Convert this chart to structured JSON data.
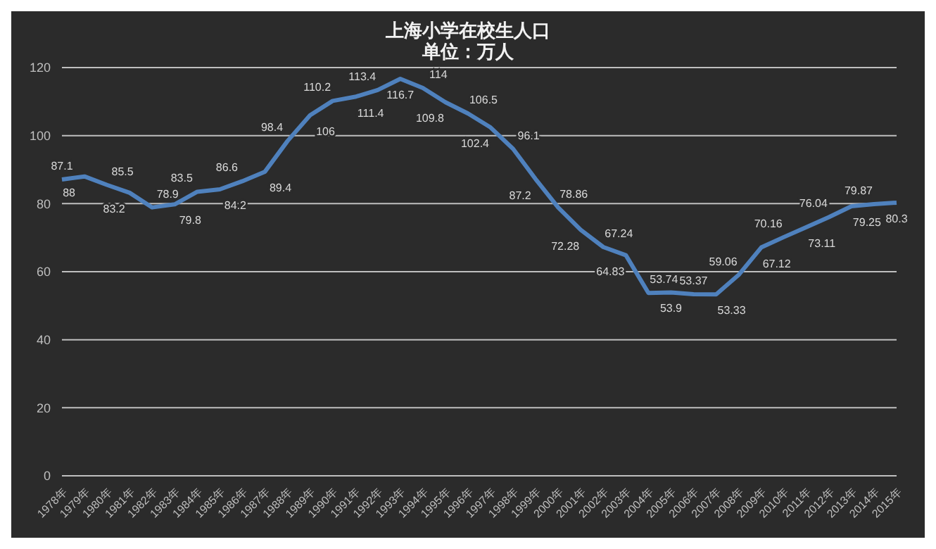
{
  "chart_data": {
    "type": "line",
    "title": "上海小学在校生人口",
    "subtitle": "单位：万人",
    "categories": [
      "1978年",
      "1979年",
      "1980年",
      "1981年",
      "1982年",
      "1983年",
      "1984年",
      "1985年",
      "1986年",
      "1987年",
      "1988年",
      "1989年",
      "1990年",
      "1991年",
      "1992年",
      "1993年",
      "1994年",
      "1995年",
      "1996年",
      "1997年",
      "1998年",
      "1999年",
      "2000年",
      "2001年",
      "2002年",
      "2003年",
      "2004年",
      "2005年",
      "2006年",
      "2007年",
      "2008年",
      "2009年",
      "2010年",
      "2011年",
      "2012年",
      "2013年",
      "2014年",
      "2015年"
    ],
    "series": [
      {
        "color": "#4f81bd",
        "values": [
          87.1,
          88,
          85.5,
          83.2,
          78.9,
          79.8,
          83.5,
          84.2,
          86.6,
          89.4,
          98.4,
          106,
          110.2,
          111.4,
          113.4,
          116.7,
          114,
          109.8,
          106.5,
          102.4,
          96.1,
          87.2,
          78.86,
          72.28,
          67.24,
          64.83,
          53.74,
          53.9,
          53.37,
          53.33,
          59.06,
          67.12,
          70.16,
          73.11,
          76.04,
          79.25,
          79.87,
          80.3
        ]
      }
    ],
    "ylim": [
      0,
      120
    ],
    "yticks": [
      0,
      20,
      40,
      60,
      80,
      100,
      120
    ],
    "grid": "y",
    "legend": false,
    "marker": "none",
    "line_style": "solid",
    "data_labels": true
  }
}
